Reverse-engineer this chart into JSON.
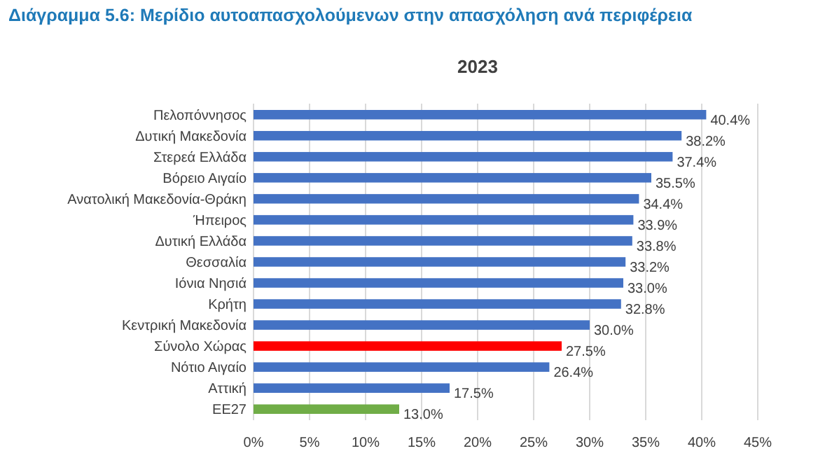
{
  "chart_data": {
    "type": "bar",
    "orientation": "horizontal",
    "title": "Διάγραμμα 5.6: Μερίδιο αυτοαπασχολούμενων στην απασχόληση ανά περιφέρεια",
    "subtitle": "2023",
    "categories": [
      "Πελοπόννησος",
      "Δυτική Μακεδονία",
      "Στερεά Ελλάδα",
      "Βόρειο Αιγαίο",
      "Ανατολική Μακεδονία-Θράκη",
      "Ήπειρος",
      "Δυτική Ελλάδα",
      "Θεσσαλία",
      "Ιόνια Νησιά",
      "Κρήτη",
      "Κεντρική Μακεδονία",
      "Σύνολο Χώρας",
      "Νότιο Αιγαίο",
      "Αττική",
      "ΕΕ27"
    ],
    "values": [
      40.4,
      38.2,
      37.4,
      35.5,
      34.4,
      33.9,
      33.8,
      33.2,
      33.0,
      32.8,
      30.0,
      27.5,
      26.4,
      17.5,
      13.0
    ],
    "value_labels": [
      "40.4%",
      "38.2%",
      "37.4%",
      "35.5%",
      "34.4%",
      "33.9%",
      "33.8%",
      "33.2%",
      "33.0%",
      "32.8%",
      "30.0%",
      "27.5%",
      "26.4%",
      "17.5%",
      "13.0%"
    ],
    "colors": [
      "#4472c4",
      "#4472c4",
      "#4472c4",
      "#4472c4",
      "#4472c4",
      "#4472c4",
      "#4472c4",
      "#4472c4",
      "#4472c4",
      "#4472c4",
      "#4472c4",
      "#ff0000",
      "#4472c4",
      "#4472c4",
      "#70ad47"
    ],
    "xlim": [
      0,
      45
    ],
    "xticks": [
      {
        "value": 0,
        "label": "0%"
      },
      {
        "value": 5,
        "label": "5%"
      },
      {
        "value": 10,
        "label": "10%"
      },
      {
        "value": 15,
        "label": "15%"
      },
      {
        "value": 20,
        "label": "20%"
      },
      {
        "value": 25,
        "label": "25%"
      },
      {
        "value": 30,
        "label": "30%"
      },
      {
        "value": 35,
        "label": "35%"
      },
      {
        "value": 40,
        "label": "40%"
      },
      {
        "value": 45,
        "label": "45%"
      }
    ],
    "grid": "x"
  }
}
